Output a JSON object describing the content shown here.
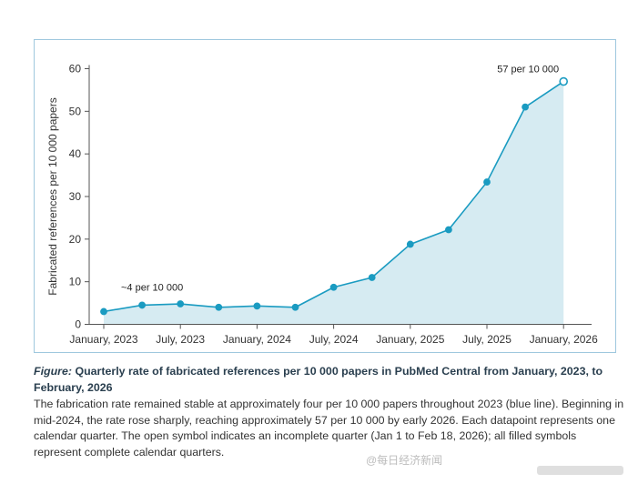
{
  "chart_data": {
    "type": "line",
    "title": "",
    "xlabel": "",
    "ylabel": "Fabricated references per 10 000 papers",
    "ylim": [
      0,
      60
    ],
    "yticks": [
      0,
      10,
      20,
      30,
      40,
      50,
      60
    ],
    "xtick_labels": [
      "January, 2023",
      "July, 2023",
      "January, 2024",
      "July, 2024",
      "January, 2025",
      "July, 2025",
      "January, 2026"
    ],
    "grid": false,
    "legend": "none",
    "series": [
      {
        "x": [
          "Q1 2023",
          "Q2 2023",
          "Q3 2023",
          "Q4 2023",
          "Q1 2024",
          "Q2 2024",
          "Q3 2024",
          "Q4 2024",
          "Q1 2025",
          "Q2 2025",
          "Q3 2025",
          "Q4 2025",
          "Q1 2026"
        ],
        "values": [
          3,
          4.5,
          4.8,
          4,
          4.3,
          4,
          8.7,
          11,
          18.8,
          22.2,
          33.4,
          51,
          57
        ],
        "open_point_index": 12
      }
    ],
    "annotations": [
      {
        "text": "~4 per 10 000",
        "anchor_index": 1
      },
      {
        "text": "57 per 10 000",
        "anchor_index": 12
      }
    ],
    "colors": {
      "line": "#1a9bc1",
      "fill": "#d6ebf2",
      "frame": "#9fc8de",
      "axis": "#555555"
    }
  },
  "caption": {
    "label": "Figure:",
    "title": "Quarterly rate of fabricated references per 10 000 papers in PubMed Central from January, 2023, to February, 2026",
    "body": "The fabrication rate remained stable at approximately four per 10 000 papers throughout 2023 (blue line). Beginning in mid-2024, the rate rose sharply, reaching approximately 57 per 10 000 by early 2026. Each datapoint represents one calendar quarter. The open symbol indicates an incomplete quarter (Jan 1 to Feb 18, 2026); all filled symbols represent complete calendar quarters."
  },
  "watermark": "@每日经济新闻"
}
